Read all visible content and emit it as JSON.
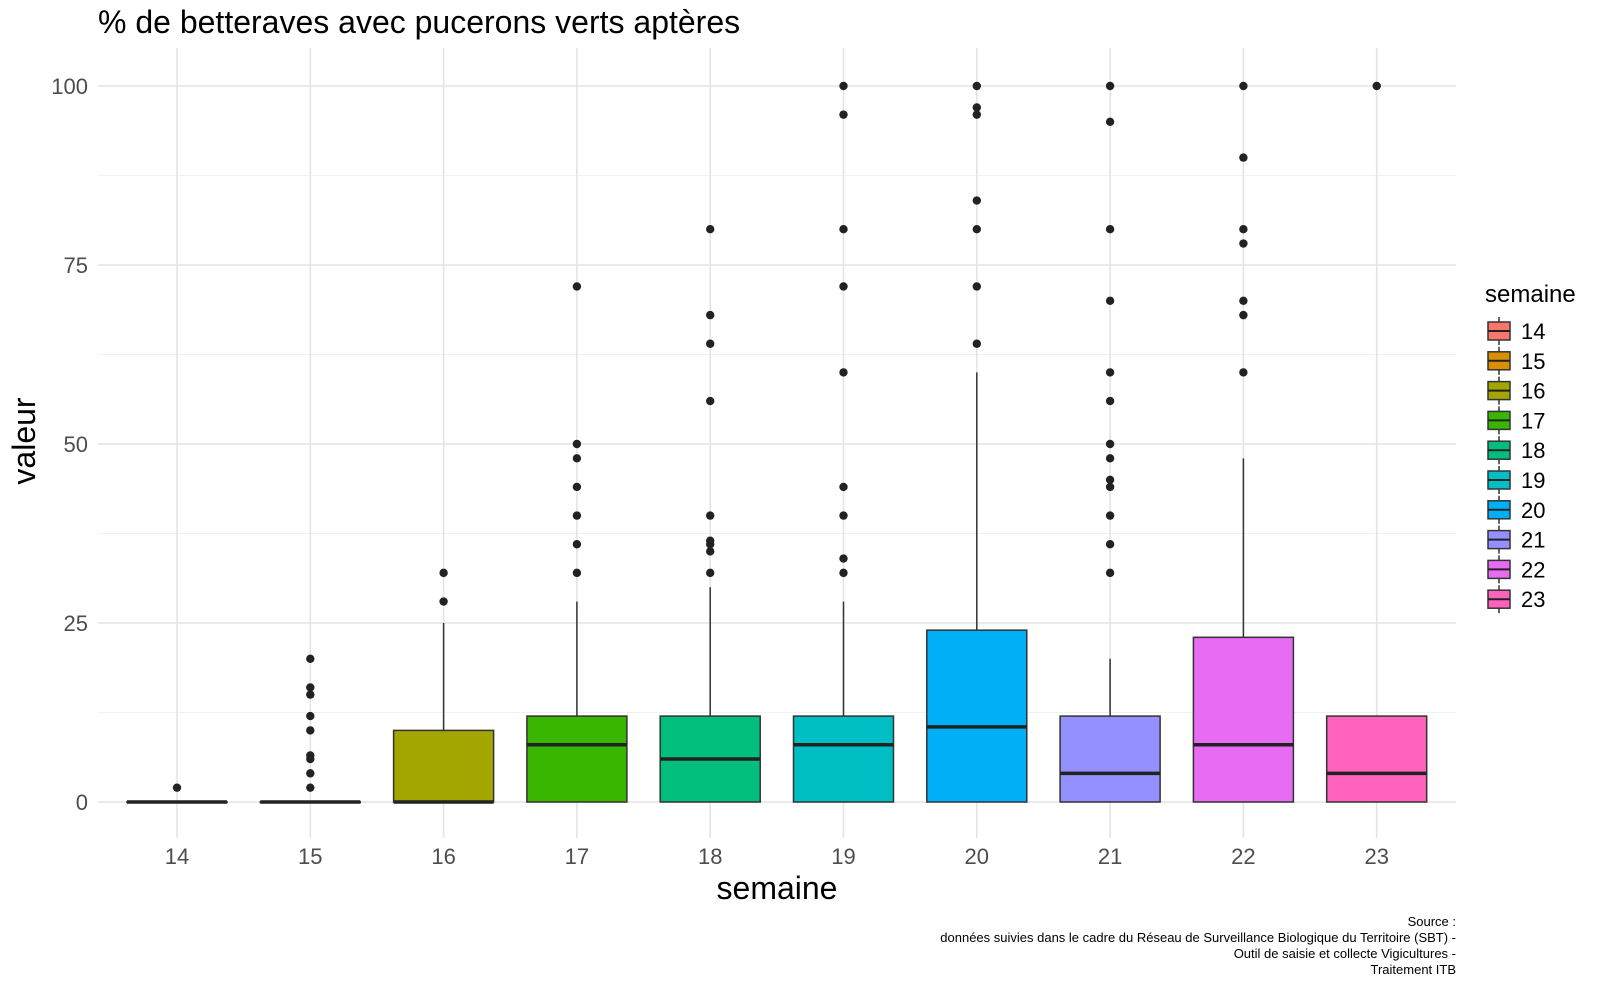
{
  "chart_data": {
    "type": "boxplot",
    "title": "% de betteraves avec pucerons verts aptères",
    "xlabel": "semaine",
    "ylabel": "valeur",
    "ylim": [
      -4,
      104
    ],
    "yticks": [
      0,
      25,
      50,
      75,
      100
    ],
    "grid": true,
    "legend": {
      "title": "semaine",
      "placement": "right"
    },
    "caption": [
      "Source :",
      "données suivies dans le cadre du Réseau de Surveillance Biologique du Territoire (SBT) -",
      "Outil de saisie et collecte Vigicultures -",
      "Traitement ITB"
    ],
    "categories": [
      "14",
      "15",
      "16",
      "17",
      "18",
      "19",
      "20",
      "21",
      "22",
      "23"
    ],
    "colors": [
      "#F8766D",
      "#D89000",
      "#A3A500",
      "#39B600",
      "#00BF7D",
      "#00BFC4",
      "#00B0F6",
      "#9590FF",
      "#E76BF3",
      "#FF62BC"
    ],
    "boxes": [
      {
        "name": "14",
        "lower_whisker": 0,
        "q1": 0,
        "median": 0,
        "q3": 0,
        "upper_whisker": 0,
        "outliers": [
          2
        ]
      },
      {
        "name": "15",
        "lower_whisker": 0,
        "q1": 0,
        "median": 0,
        "q3": 0,
        "upper_whisker": 0,
        "outliers": [
          2,
          4,
          6,
          6.5,
          10,
          12,
          15,
          16,
          20
        ]
      },
      {
        "name": "16",
        "lower_whisker": 0,
        "q1": 0,
        "median": 0,
        "q3": 10,
        "upper_whisker": 25,
        "outliers": [
          28,
          32
        ]
      },
      {
        "name": "17",
        "lower_whisker": 0,
        "q1": 0,
        "median": 8,
        "q3": 12,
        "upper_whisker": 28,
        "outliers": [
          32,
          36,
          40,
          44,
          48,
          50,
          72
        ]
      },
      {
        "name": "18",
        "lower_whisker": 0,
        "q1": 0,
        "median": 6,
        "q3": 12,
        "upper_whisker": 30,
        "outliers": [
          32,
          35,
          36,
          36.5,
          40,
          56,
          64,
          68,
          80
        ]
      },
      {
        "name": "19",
        "lower_whisker": 0,
        "q1": 0,
        "median": 8,
        "q3": 12,
        "upper_whisker": 28,
        "outliers": [
          32,
          34,
          40,
          44,
          60,
          72,
          80,
          96,
          100
        ]
      },
      {
        "name": "20",
        "lower_whisker": 0,
        "q1": 0,
        "median": 10.5,
        "q3": 24,
        "upper_whisker": 60,
        "outliers": [
          64,
          72,
          80,
          84,
          96,
          97,
          100
        ]
      },
      {
        "name": "21",
        "lower_whisker": 0,
        "q1": 0,
        "median": 4,
        "q3": 12,
        "upper_whisker": 20,
        "outliers": [
          32,
          36,
          40,
          44,
          45,
          48,
          50,
          56,
          60,
          70,
          80,
          95,
          100
        ]
      },
      {
        "name": "22",
        "lower_whisker": 0,
        "q1": 0,
        "median": 8,
        "q3": 23,
        "upper_whisker": 48,
        "outliers": [
          60,
          68,
          70,
          78,
          80,
          90,
          100
        ]
      },
      {
        "name": "23",
        "lower_whisker": 0,
        "q1": 0,
        "median": 4,
        "q3": 12,
        "upper_whisker": 12,
        "outliers": [
          100
        ]
      }
    ]
  }
}
